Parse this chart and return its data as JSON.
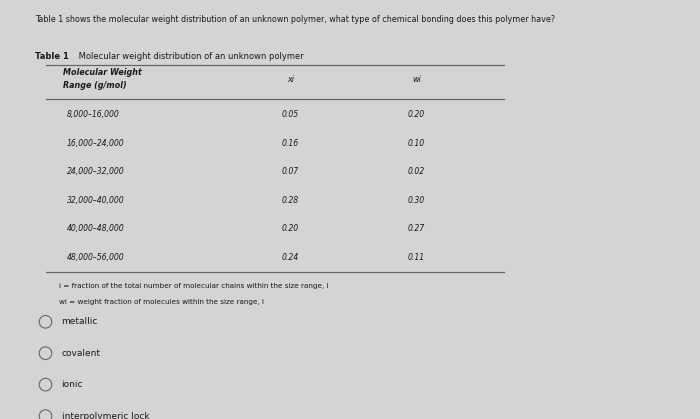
{
  "question": "Table 1 shows the molecular weight distribution of an unknown polymer, what type of chemical bonding does this polymer have?",
  "table_title_bold": "Table 1",
  "table_title_rest": " Molecular weight distribution of an unknown polymer",
  "col1_header_line1": "Molecular Weight",
  "col1_header_line2": "Range (g/mol)",
  "col2_header": "xi",
  "col3_header": "wi",
  "rows": [
    [
      "8,000–16,000",
      "0.05",
      "0.20"
    ],
    [
      "16,000–24,000",
      "0.16",
      "0.10"
    ],
    [
      "24,000–32,000",
      "0.07",
      "0.02"
    ],
    [
      "32,000–40,000",
      "0.28",
      "0.30"
    ],
    [
      "40,000–48,000",
      "0.20",
      "0.27"
    ],
    [
      "48,000–56,000",
      "0.24",
      "0.11"
    ]
  ],
  "footnote1": "i = fraction of the total number of molecular chains within the size range, i",
  "footnote2": "wi = weight fraction of molecules within the size range, i",
  "options": [
    "metallic",
    "covalent",
    "ionic",
    "interpolymeric lock"
  ],
  "bg_color": "#c8c8c8",
  "panel_color": "#d4d4d4",
  "text_color": "#1a1a1a",
  "line_color": "#666666"
}
